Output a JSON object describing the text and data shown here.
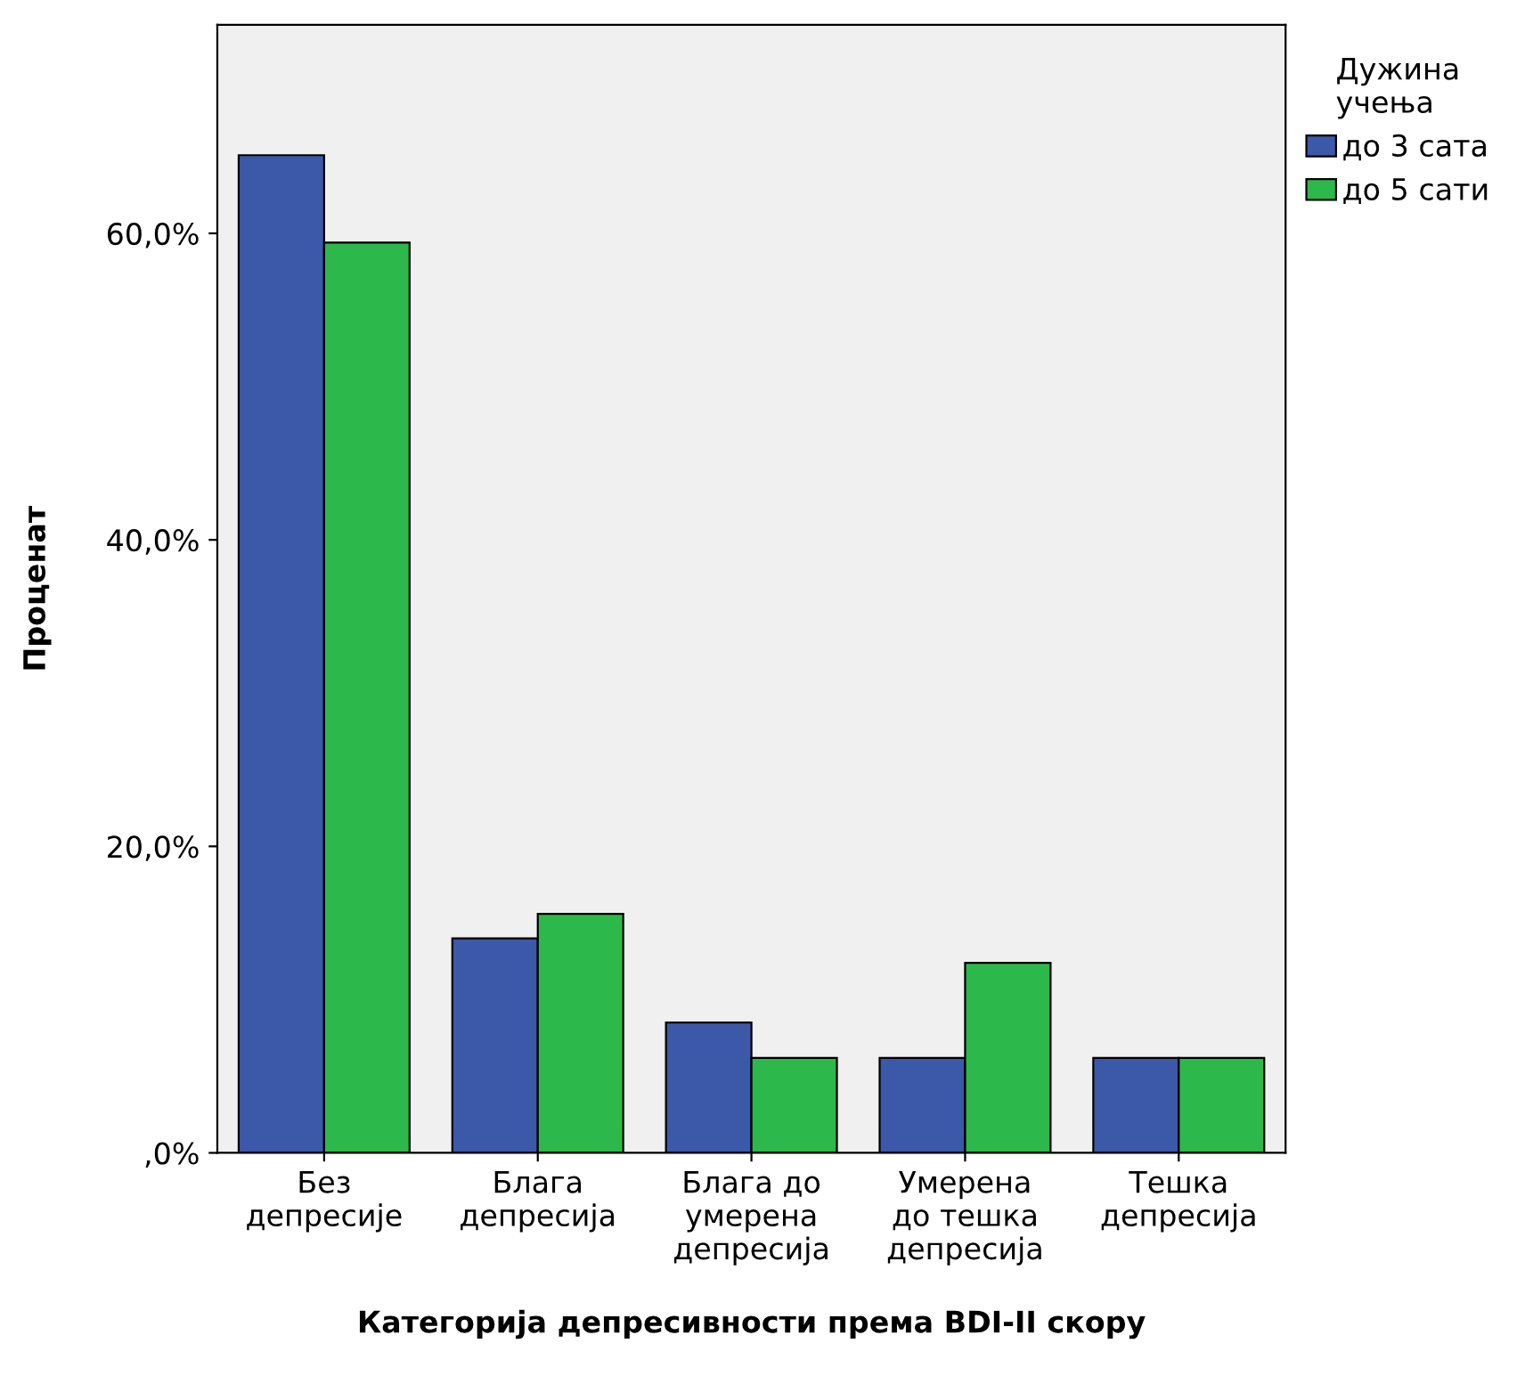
{
  "chart_data": {
    "type": "bar",
    "xlabel": "Категорија депресивности према BDI-II скору",
    "ylabel": "Проценат",
    "legend_title": "Дужина\nучења",
    "categories": [
      "Без\nдепресије",
      "Блага\nдепресија",
      "Блага до\nумерена\nдепресија",
      "Умерена\nдо тешка\nдепресија",
      "Тешка\nдепресија"
    ],
    "series": [
      {
        "name": "до 3 сата",
        "color": "#3c58a8",
        "values": [
          65.1,
          14.0,
          8.5,
          6.2,
          6.2
        ]
      },
      {
        "name": "до 5 сати",
        "color": "#2db84b",
        "values": [
          59.4,
          15.6,
          6.2,
          12.4,
          6.2
        ]
      }
    ],
    "ylim": [
      0,
      73.6
    ],
    "yticks": [
      {
        "value": 0,
        "label": ",0%"
      },
      {
        "value": 20,
        "label": "20,0%"
      },
      {
        "value": 40,
        "label": "40,0%"
      },
      {
        "value": 60,
        "label": "60,0%"
      }
    ],
    "grid": false,
    "legend": "top right"
  }
}
